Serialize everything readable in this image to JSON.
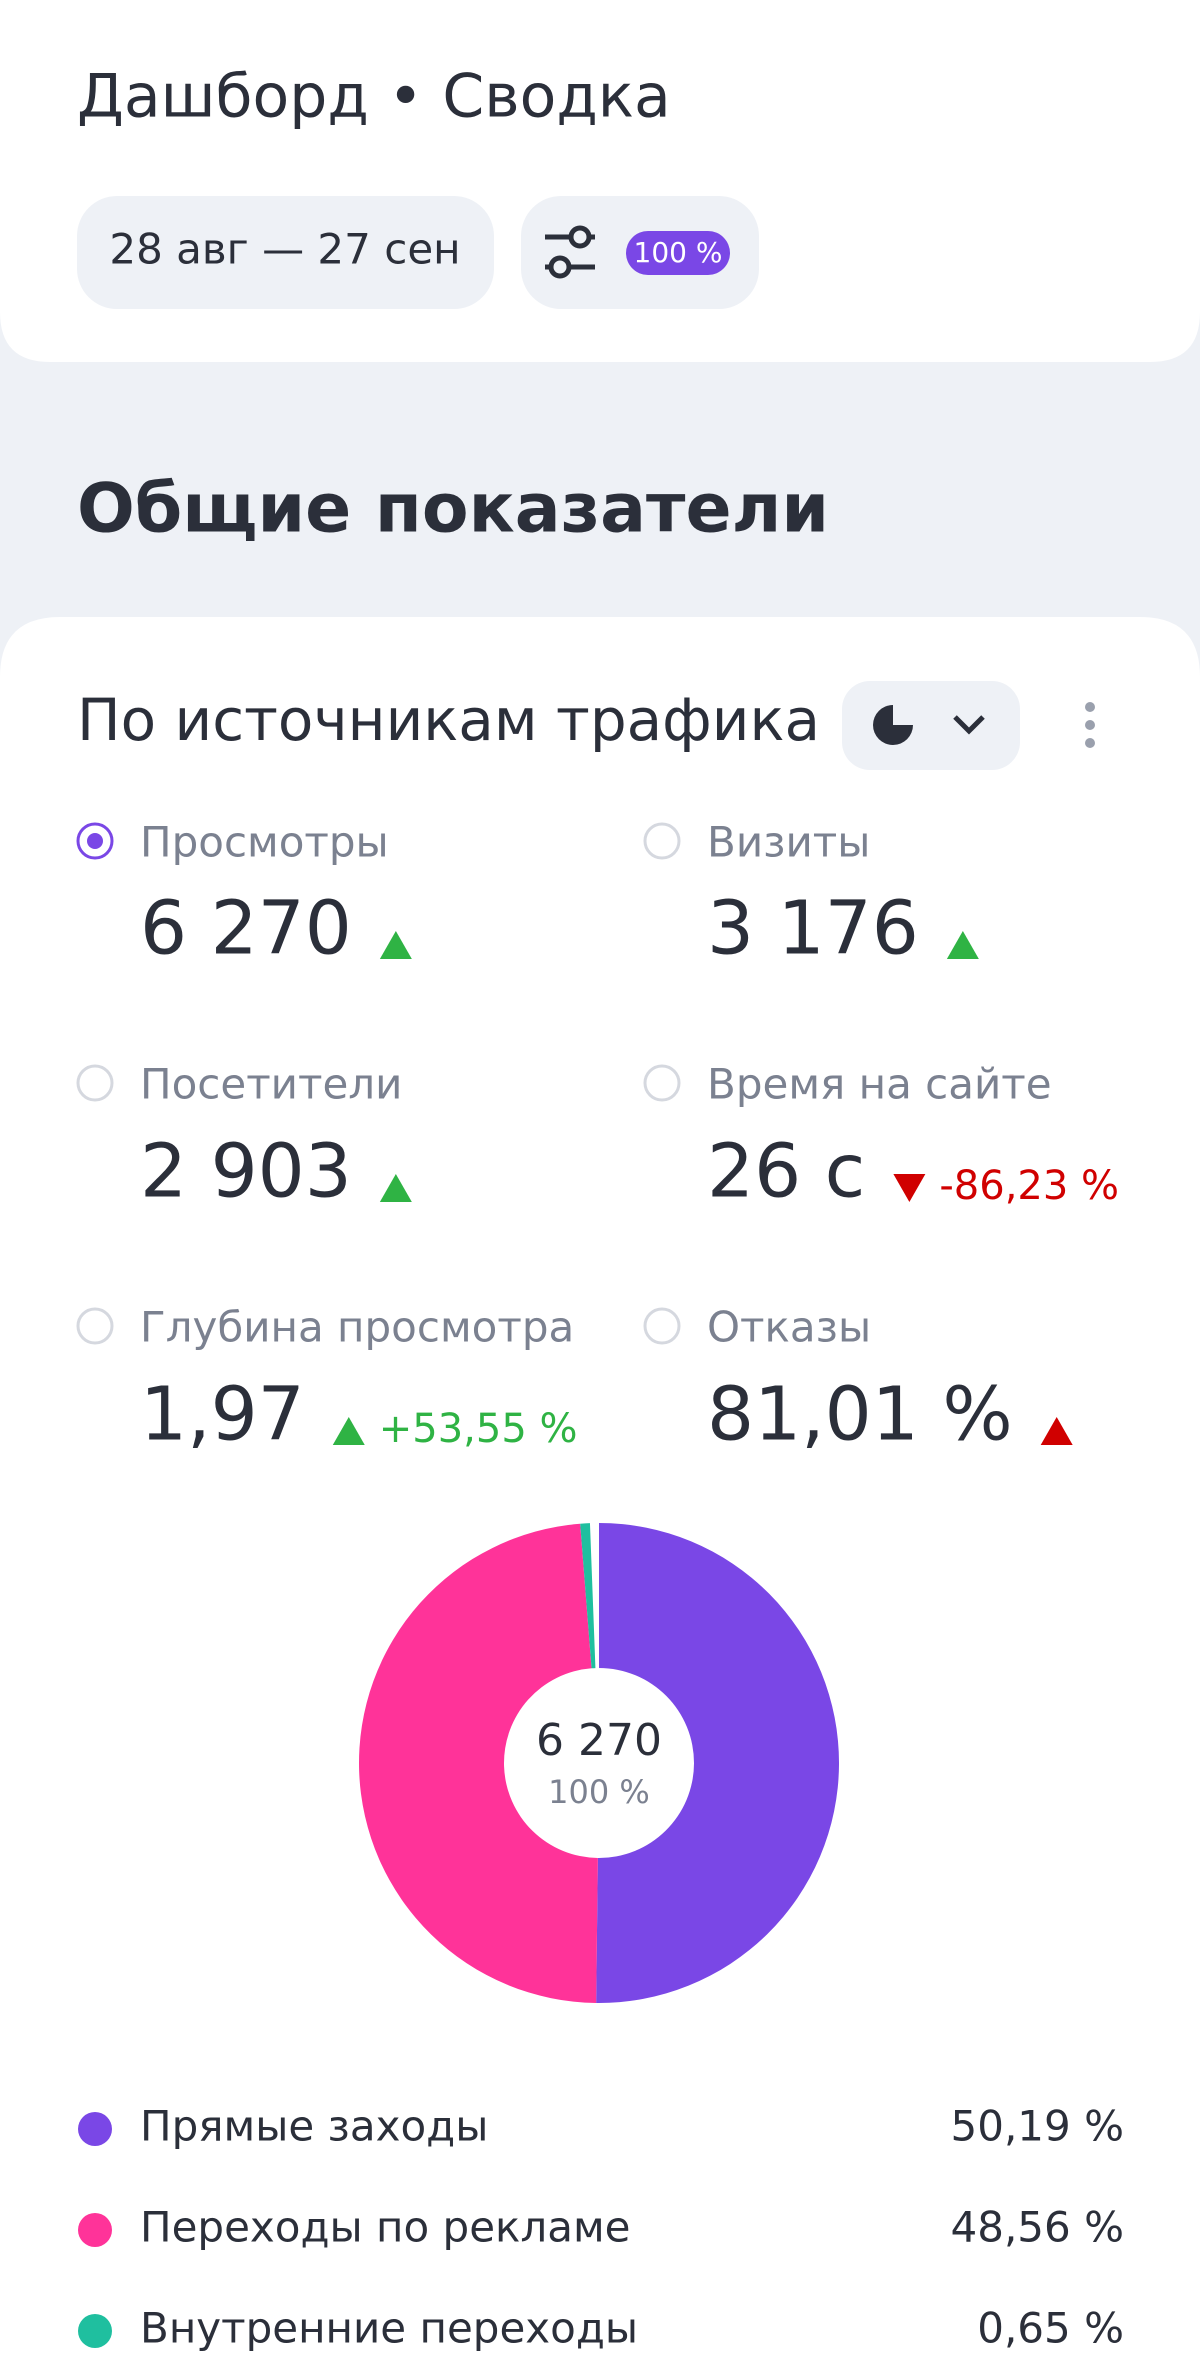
{
  "header": {
    "title": "Дашборд • Сводка",
    "date_range": "28 авг — 27 сен",
    "sampling_badge": "100 %"
  },
  "section_title": "Общие показатели",
  "card": {
    "title": "По источникам трафика",
    "metrics": [
      {
        "label": "Просмотры",
        "value": "6 270",
        "trend": "up",
        "trend_color": "#2fb344",
        "selected": true
      },
      {
        "label": "Визиты",
        "value": "3 176",
        "trend": "up",
        "trend_color": "#2fb344",
        "selected": false
      },
      {
        "label": "Посетители",
        "value": "2 903",
        "trend": "up",
        "trend_color": "#2fb344",
        "selected": false
      },
      {
        "label": "Время на сайте",
        "value": "26 с",
        "trend": "down",
        "trend_color": "#d00000",
        "change": "-86,23 %",
        "selected": false
      },
      {
        "label": "Глубина просмотра",
        "value": "1,97",
        "trend": "up",
        "trend_color": "#2fb344",
        "change": "+53,55 %",
        "selected": false
      },
      {
        "label": "Отказы",
        "value": "81,01 %",
        "trend": "up",
        "trend_color": "#d00000",
        "selected": false
      }
    ],
    "chart": {
      "type": "pie",
      "center_value": "6 270",
      "center_label": "100 %",
      "categories": [
        "Прямые заходы",
        "Переходы по рекламе",
        "Внутренние переходы"
      ],
      "values": [
        50.19,
        48.56,
        0.65
      ],
      "value_labels": [
        "50,19 %",
        "48,56 %",
        "0,65 %"
      ],
      "colors": [
        "#7a47e6",
        "#ff3399",
        "#1fbf9f"
      ]
    }
  }
}
